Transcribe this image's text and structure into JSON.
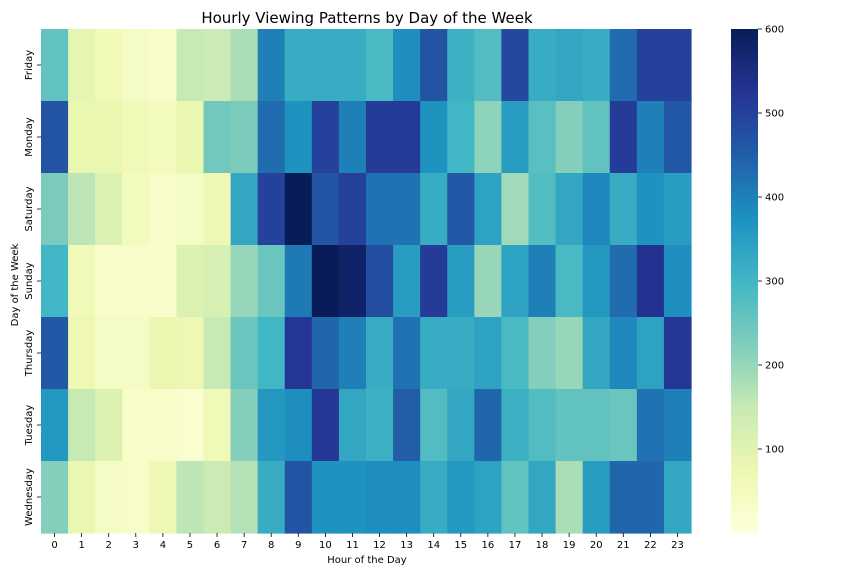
{
  "chart_data": {
    "type": "heatmap",
    "title": "Hourly Viewing Patterns by Day of the Week",
    "xlabel": "Hour of the Day",
    "ylabel": "Day of the Week",
    "x": [
      "0",
      "1",
      "2",
      "3",
      "4",
      "5",
      "6",
      "7",
      "8",
      "9",
      "10",
      "11",
      "12",
      "13",
      "14",
      "15",
      "16",
      "17",
      "18",
      "19",
      "20",
      "21",
      "22",
      "23"
    ],
    "y": [
      "Friday",
      "Monday",
      "Saturday",
      "Sunday",
      "Thursday",
      "Tuesday",
      "Wednesday"
    ],
    "values": [
      [
        260,
        90,
        60,
        40,
        30,
        150,
        140,
        180,
        400,
        320,
        320,
        320,
        290,
        380,
        470,
        310,
        280,
        490,
        320,
        330,
        320,
        430,
        500,
        500
      ],
      [
        470,
        80,
        80,
        60,
        50,
        80,
        240,
        230,
        430,
        370,
        500,
        400,
        510,
        510,
        370,
        300,
        210,
        350,
        270,
        220,
        260,
        510,
        400,
        460
      ],
      [
        230,
        160,
        110,
        50,
        30,
        40,
        70,
        330,
        500,
        600,
        470,
        500,
        420,
        420,
        320,
        460,
        340,
        190,
        280,
        330,
        390,
        320,
        370,
        350
      ],
      [
        300,
        60,
        30,
        30,
        30,
        110,
        120,
        200,
        250,
        410,
        600,
        580,
        480,
        350,
        510,
        350,
        200,
        340,
        400,
        290,
        360,
        430,
        530,
        380
      ],
      [
        460,
        70,
        40,
        40,
        80,
        70,
        150,
        250,
        300,
        520,
        440,
        400,
        320,
        420,
        320,
        320,
        340,
        290,
        220,
        200,
        330,
        390,
        340,
        520
      ],
      [
        360,
        150,
        110,
        30,
        30,
        20,
        60,
        220,
        360,
        380,
        520,
        330,
        310,
        450,
        280,
        330,
        440,
        310,
        280,
        260,
        260,
        250,
        420,
        400
      ],
      [
        220,
        80,
        40,
        30,
        70,
        160,
        140,
        170,
        320,
        470,
        370,
        370,
        380,
        380,
        320,
        360,
        340,
        260,
        330,
        180,
        350,
        440,
        440,
        330
      ]
    ],
    "vmin": 0,
    "vmax": 600,
    "colorbar_ticks": [
      "100",
      "200",
      "300",
      "400",
      "500",
      "600"
    ],
    "colormap": "YlGnBu",
    "grid": false,
    "legend": "colorbar-right"
  }
}
